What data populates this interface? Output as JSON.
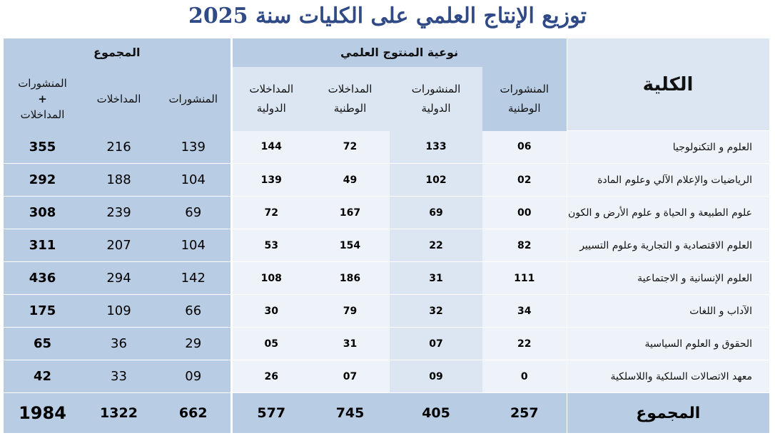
{
  "title": "توزيع الإنتاج العلمي على الكليات سنة 2025",
  "header": {
    "college": "الكلية",
    "type_group": "نوعية المنتوج العلمي",
    "total_group": "المجموع",
    "sub": {
      "national_pub_1": "المنشورات",
      "national_pub_2": "الوطنية",
      "intl_pub_1": "المنشورات",
      "intl_pub_2": "الدولية",
      "national_talk_1": "المداخلات",
      "national_talk_2": "الوطنية",
      "intl_talk_1": "المداخلات",
      "intl_talk_2": "الدولية",
      "tot_pub": "المنشورات",
      "tot_talk": "المداخلات",
      "tot_all_1": "المنشورات",
      "tot_all_2": "+",
      "tot_all_3": "المداخلات"
    }
  },
  "rows": [
    {
      "name": "العلوم و التكنولوجيا",
      "np": "06",
      "ip": "133",
      "nt": "72",
      "it": "144",
      "tp": "139",
      "tt": "216",
      "ta": "355"
    },
    {
      "name": "الرياضيات والإعلام الآلي وعلوم المادة",
      "np": "02",
      "ip": "102",
      "nt": "49",
      "it": "139",
      "tp": "104",
      "tt": "188",
      "ta": "292"
    },
    {
      "name": "علوم الطبيعة و الحياة و علوم الأرض و الكون",
      "np": "00",
      "ip": "69",
      "nt": "167",
      "it": "72",
      "tp": "69",
      "tt": "239",
      "ta": "308"
    },
    {
      "name": "العلوم الاقتصادية و التجارية  وعلوم التسيير",
      "np": "82",
      "ip": "22",
      "nt": "154",
      "it": "53",
      "tp": "104",
      "tt": "207",
      "ta": "311"
    },
    {
      "name": "العلوم الإنسانية و الاجتماعية",
      "np": "111",
      "ip": "31",
      "nt": "186",
      "it": "108",
      "tp": "142",
      "tt": "294",
      "ta": "436"
    },
    {
      "name": "الآداب و اللغات",
      "np": "34",
      "ip": "32",
      "nt": "79",
      "it": "30",
      "tp": "66",
      "tt": "109",
      "ta": "175"
    },
    {
      "name": "الحقوق و العلوم السياسية",
      "np": "22",
      "ip": "07",
      "nt": "31",
      "it": "05",
      "tp": "29",
      "tt": "36",
      "ta": "65"
    },
    {
      "name": "معهد الاتصالات السلكية واللاسلكية",
      "np": "0",
      "ip": "09",
      "nt": "07",
      "it": "26",
      "tp": "09",
      "tt": "33",
      "ta": "42"
    }
  ],
  "totals": {
    "name": "المجموع",
    "np": "257",
    "ip": "405",
    "nt": "745",
    "it": "577",
    "tp": "662",
    "tt": "1322",
    "ta": "1984"
  }
}
